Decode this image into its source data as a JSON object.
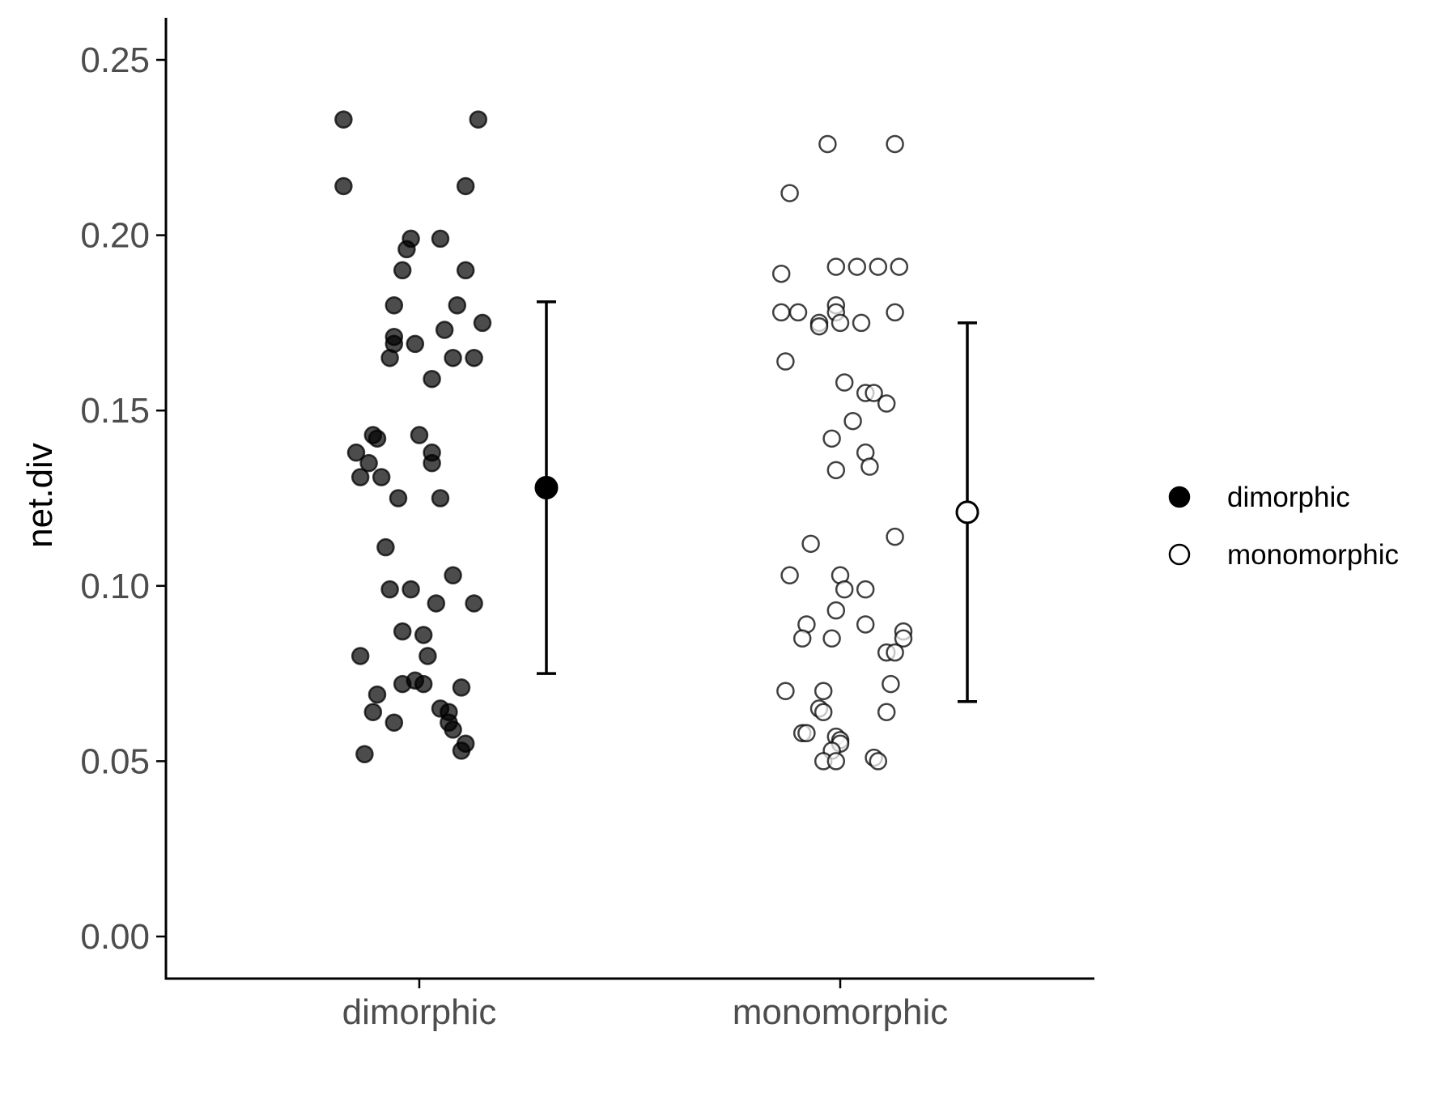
{
  "chart_data": {
    "type": "scatter",
    "ylabel": "net.div",
    "xlabel": "",
    "categories": [
      "dimorphic",
      "monomorphic"
    ],
    "ylim": [
      -0.012,
      0.262
    ],
    "yticks": [
      0.0,
      0.05,
      0.1,
      0.15,
      0.2,
      0.25
    ],
    "ytick_labels": [
      "0.00",
      "0.05",
      "0.10",
      "0.15",
      "0.20",
      "0.25"
    ],
    "grid": false,
    "legend": {
      "placement": "right",
      "entries": [
        {
          "label": "dimorphic",
          "fill": "#000000"
        },
        {
          "label": "monomorphic",
          "fill": "#ffffff"
        }
      ]
    },
    "colors": {
      "dimorphic_fill": "#000000",
      "monomorphic_fill": "#ffffff",
      "stroke": "#000000",
      "axis": "#000000",
      "tick_text": "#4d4d4d"
    },
    "series": [
      {
        "category": "dimorphic",
        "name": "dimorphic",
        "points": [
          {
            "x": -0.18,
            "y": 0.233
          },
          {
            "x": 0.14,
            "y": 0.233
          },
          {
            "x": -0.18,
            "y": 0.214
          },
          {
            "x": 0.11,
            "y": 0.214
          },
          {
            "x": -0.02,
            "y": 0.199
          },
          {
            "x": 0.05,
            "y": 0.199
          },
          {
            "x": -0.03,
            "y": 0.196
          },
          {
            "x": -0.04,
            "y": 0.19
          },
          {
            "x": 0.11,
            "y": 0.19
          },
          {
            "x": -0.06,
            "y": 0.18
          },
          {
            "x": 0.09,
            "y": 0.18
          },
          {
            "x": 0.15,
            "y": 0.175
          },
          {
            "x": 0.06,
            "y": 0.173
          },
          {
            "x": -0.06,
            "y": 0.171
          },
          {
            "x": -0.06,
            "y": 0.169
          },
          {
            "x": -0.01,
            "y": 0.169
          },
          {
            "x": -0.07,
            "y": 0.165
          },
          {
            "x": 0.08,
            "y": 0.165
          },
          {
            "x": 0.13,
            "y": 0.165
          },
          {
            "x": 0.03,
            "y": 0.159
          },
          {
            "x": -0.11,
            "y": 0.143
          },
          {
            "x": -0.1,
            "y": 0.142
          },
          {
            "x": 0.0,
            "y": 0.143
          },
          {
            "x": -0.15,
            "y": 0.138
          },
          {
            "x": 0.03,
            "y": 0.138
          },
          {
            "x": -0.12,
            "y": 0.135
          },
          {
            "x": 0.03,
            "y": 0.135
          },
          {
            "x": -0.14,
            "y": 0.131
          },
          {
            "x": -0.09,
            "y": 0.131
          },
          {
            "x": -0.05,
            "y": 0.125
          },
          {
            "x": 0.05,
            "y": 0.125
          },
          {
            "x": -0.08,
            "y": 0.111
          },
          {
            "x": 0.08,
            "y": 0.103
          },
          {
            "x": -0.07,
            "y": 0.099
          },
          {
            "x": -0.02,
            "y": 0.099
          },
          {
            "x": 0.04,
            "y": 0.095
          },
          {
            "x": 0.13,
            "y": 0.095
          },
          {
            "x": -0.04,
            "y": 0.087
          },
          {
            "x": 0.01,
            "y": 0.086
          },
          {
            "x": -0.14,
            "y": 0.08
          },
          {
            "x": 0.02,
            "y": 0.08
          },
          {
            "x": -0.04,
            "y": 0.072
          },
          {
            "x": -0.01,
            "y": 0.073
          },
          {
            "x": 0.01,
            "y": 0.072
          },
          {
            "x": 0.1,
            "y": 0.071
          },
          {
            "x": -0.1,
            "y": 0.069
          },
          {
            "x": 0.05,
            "y": 0.065
          },
          {
            "x": 0.07,
            "y": 0.064
          },
          {
            "x": -0.11,
            "y": 0.064
          },
          {
            "x": 0.07,
            "y": 0.061
          },
          {
            "x": -0.06,
            "y": 0.061
          },
          {
            "x": 0.08,
            "y": 0.059
          },
          {
            "x": 0.11,
            "y": 0.055
          },
          {
            "x": 0.1,
            "y": 0.053
          },
          {
            "x": -0.13,
            "y": 0.052
          }
        ],
        "summary": {
          "mean": 0.128,
          "lower": 0.075,
          "upper": 0.181
        }
      },
      {
        "category": "monomorphic",
        "name": "monomorphic",
        "points": [
          {
            "x": -0.03,
            "y": 0.226
          },
          {
            "x": 0.13,
            "y": 0.226
          },
          {
            "x": -0.12,
            "y": 0.212
          },
          {
            "x": -0.14,
            "y": 0.189
          },
          {
            "x": -0.01,
            "y": 0.191
          },
          {
            "x": 0.04,
            "y": 0.191
          },
          {
            "x": 0.09,
            "y": 0.191
          },
          {
            "x": 0.14,
            "y": 0.191
          },
          {
            "x": -0.14,
            "y": 0.178
          },
          {
            "x": -0.1,
            "y": 0.178
          },
          {
            "x": -0.01,
            "y": 0.18
          },
          {
            "x": -0.01,
            "y": 0.178
          },
          {
            "x": 0.13,
            "y": 0.178
          },
          {
            "x": -0.05,
            "y": 0.175
          },
          {
            "x": -0.05,
            "y": 0.174
          },
          {
            "x": 0.0,
            "y": 0.175
          },
          {
            "x": 0.05,
            "y": 0.175
          },
          {
            "x": -0.13,
            "y": 0.164
          },
          {
            "x": 0.01,
            "y": 0.158
          },
          {
            "x": 0.06,
            "y": 0.155
          },
          {
            "x": 0.08,
            "y": 0.155
          },
          {
            "x": 0.11,
            "y": 0.152
          },
          {
            "x": 0.03,
            "y": 0.147
          },
          {
            "x": -0.02,
            "y": 0.142
          },
          {
            "x": 0.06,
            "y": 0.138
          },
          {
            "x": 0.07,
            "y": 0.134
          },
          {
            "x": -0.01,
            "y": 0.133
          },
          {
            "x": 0.13,
            "y": 0.114
          },
          {
            "x": -0.07,
            "y": 0.112
          },
          {
            "x": -0.12,
            "y": 0.103
          },
          {
            "x": 0.0,
            "y": 0.103
          },
          {
            "x": 0.01,
            "y": 0.099
          },
          {
            "x": 0.06,
            "y": 0.099
          },
          {
            "x": -0.01,
            "y": 0.093
          },
          {
            "x": -0.08,
            "y": 0.089
          },
          {
            "x": 0.06,
            "y": 0.089
          },
          {
            "x": 0.15,
            "y": 0.087
          },
          {
            "x": -0.09,
            "y": 0.085
          },
          {
            "x": -0.02,
            "y": 0.085
          },
          {
            "x": 0.15,
            "y": 0.085
          },
          {
            "x": 0.11,
            "y": 0.081
          },
          {
            "x": 0.13,
            "y": 0.081
          },
          {
            "x": 0.12,
            "y": 0.072
          },
          {
            "x": -0.13,
            "y": 0.07
          },
          {
            "x": -0.04,
            "y": 0.07
          },
          {
            "x": -0.05,
            "y": 0.065
          },
          {
            "x": -0.04,
            "y": 0.064
          },
          {
            "x": 0.11,
            "y": 0.064
          },
          {
            "x": -0.09,
            "y": 0.058
          },
          {
            "x": -0.08,
            "y": 0.058
          },
          {
            "x": -0.01,
            "y": 0.057
          },
          {
            "x": 0.0,
            "y": 0.056
          },
          {
            "x": 0.0,
            "y": 0.055
          },
          {
            "x": -0.02,
            "y": 0.053
          },
          {
            "x": 0.08,
            "y": 0.051
          },
          {
            "x": 0.09,
            "y": 0.05
          },
          {
            "x": -0.04,
            "y": 0.05
          },
          {
            "x": -0.01,
            "y": 0.05
          }
        ],
        "summary": {
          "mean": 0.121,
          "lower": 0.067,
          "upper": 0.175
        }
      }
    ]
  }
}
